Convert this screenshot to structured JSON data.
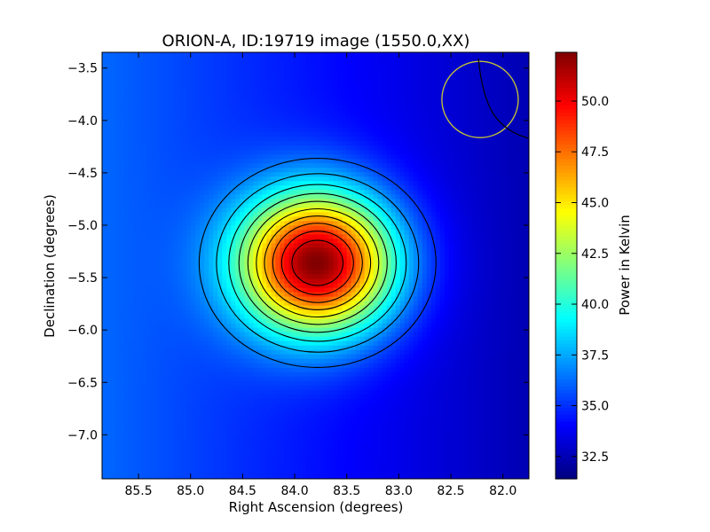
{
  "chart_data": {
    "type": "heatmap",
    "title": "ORION-A, ID:19719 image (1550.0,XX)",
    "xlabel": "Right Ascension (degrees)",
    "ylabel": "Declination (degrees)",
    "xlim": [
      85.85,
      81.75
    ],
    "ylim": [
      -7.42,
      -3.35
    ],
    "x_ticks": [
      85.5,
      85.0,
      84.5,
      84.0,
      83.5,
      83.0,
      82.5,
      82.0
    ],
    "x_tick_labels": [
      "85.5",
      "85.0",
      "84.5",
      "84.0",
      "83.5",
      "83.0",
      "82.5",
      "82.0"
    ],
    "y_ticks": [
      -3.5,
      -4.0,
      -4.5,
      -5.0,
      -5.5,
      -6.0,
      -6.5,
      -7.0
    ],
    "y_tick_labels": [
      "−3.5",
      "−4.0",
      "−4.5",
      "−5.0",
      "−5.5",
      "−6.0",
      "−6.5",
      "−7.0"
    ],
    "colorbar": {
      "label": "Power in Kelvin",
      "range": [
        31.4,
        52.4
      ],
      "ticks": [
        32.5,
        35.0,
        37.5,
        40.0,
        42.5,
        45.0,
        47.5,
        50.0
      ],
      "tick_labels": [
        "32.5",
        "35.0",
        "37.5",
        "40.0",
        "42.5",
        "45.0",
        "47.5",
        "50.0"
      ],
      "colormap": "jet"
    },
    "source": {
      "ra": 83.78,
      "dec": -5.36,
      "peak": 52.4,
      "background": 34.3
    },
    "contour_levels": [
      36.2,
      37.8,
      39.4,
      41.0,
      42.6,
      44.2,
      45.8,
      47.4,
      49.0,
      50.6
    ],
    "beam_circle": {
      "ra": 82.22,
      "dec": -3.8,
      "color": "#c8c832"
    }
  }
}
